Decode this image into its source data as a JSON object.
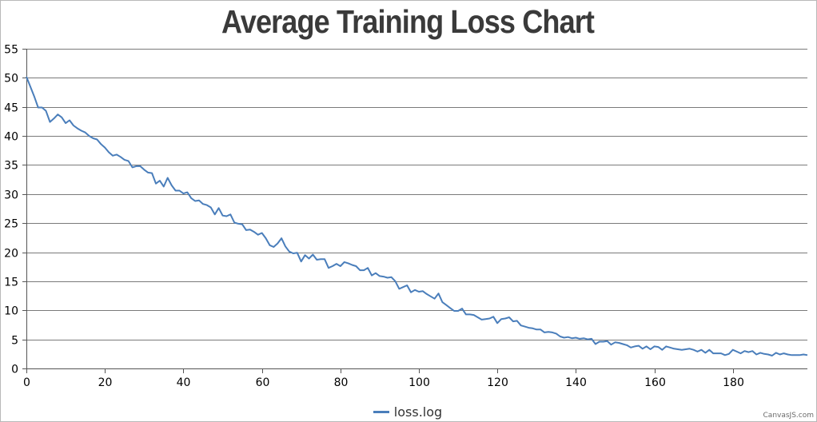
{
  "chart_data": {
    "type": "line",
    "title": "Average Training Loss Chart",
    "xlabel": "",
    "ylabel": "",
    "xlim": [
      0,
      199
    ],
    "ylim": [
      0,
      55
    ],
    "x_ticks": [
      0,
      20,
      40,
      60,
      80,
      100,
      120,
      140,
      160,
      180
    ],
    "y_ticks": [
      0,
      5,
      10,
      15,
      20,
      25,
      30,
      35,
      40,
      45,
      50,
      55
    ],
    "grid": "horizontal",
    "legend_position": "bottom-center",
    "line_color": "#4a7ebb",
    "series": [
      {
        "name": "loss.log",
        "x": [
          0,
          1,
          2,
          3,
          4,
          5,
          6,
          7,
          8,
          9,
          10,
          11,
          12,
          13,
          14,
          15,
          16,
          17,
          18,
          19,
          20,
          21,
          22,
          23,
          24,
          25,
          26,
          27,
          28,
          29,
          30,
          31,
          32,
          33,
          34,
          35,
          36,
          37,
          38,
          39,
          40,
          41,
          42,
          43,
          44,
          45,
          46,
          47,
          48,
          49,
          50,
          51,
          52,
          53,
          54,
          55,
          56,
          57,
          58,
          59,
          60,
          61,
          62,
          63,
          64,
          65,
          66,
          67,
          68,
          69,
          70,
          71,
          72,
          73,
          74,
          75,
          76,
          77,
          78,
          79,
          80,
          81,
          82,
          83,
          84,
          85,
          86,
          87,
          88,
          89,
          90,
          91,
          92,
          93,
          94,
          95,
          96,
          97,
          98,
          99,
          100,
          101,
          102,
          103,
          104,
          105,
          106,
          107,
          108,
          109,
          110,
          111,
          112,
          113,
          114,
          115,
          116,
          117,
          118,
          119,
          120,
          121,
          122,
          123,
          124,
          125,
          126,
          127,
          128,
          129,
          130,
          131,
          132,
          133,
          134,
          135,
          136,
          137,
          138,
          139,
          140,
          141,
          142,
          143,
          144,
          145,
          146,
          147,
          148,
          149,
          150,
          151,
          152,
          153,
          154,
          155,
          156,
          157,
          158,
          159,
          160,
          161,
          162,
          163,
          164,
          165,
          166,
          167,
          168,
          169,
          170,
          171,
          172,
          173,
          174,
          175,
          176,
          177,
          178,
          179,
          180,
          181,
          182,
          183,
          184,
          185,
          186,
          187,
          188,
          189,
          190,
          191,
          192,
          193,
          194,
          195,
          196,
          197,
          198,
          199
        ],
        "values": [
          50.2,
          48.5,
          46.8,
          44.9,
          44.9,
          44.3,
          42.4,
          43.0,
          43.7,
          43.2,
          42.2,
          42.7,
          41.8,
          41.3,
          40.9,
          40.6,
          40.0,
          39.6,
          39.4,
          38.6,
          38.0,
          37.2,
          36.6,
          36.8,
          36.4,
          35.9,
          35.7,
          34.6,
          34.8,
          34.8,
          34.2,
          33.7,
          33.6,
          31.8,
          32.3,
          31.3,
          32.8,
          31.5,
          30.6,
          30.6,
          30.1,
          30.3,
          29.3,
          28.8,
          28.9,
          28.3,
          28.1,
          27.7,
          26.5,
          27.6,
          26.3,
          26.2,
          26.5,
          25.1,
          24.9,
          24.8,
          23.8,
          23.9,
          23.5,
          23.0,
          23.3,
          22.4,
          21.2,
          20.9,
          21.5,
          22.4,
          21.0,
          20.1,
          19.8,
          19.9,
          18.4,
          19.5,
          18.9,
          19.6,
          18.7,
          18.8,
          18.8,
          17.3,
          17.6,
          18.0,
          17.6,
          18.3,
          18.1,
          17.8,
          17.6,
          16.9,
          16.9,
          17.3,
          16.0,
          16.4,
          15.9,
          15.8,
          15.6,
          15.7,
          15.0,
          13.7,
          14.0,
          14.3,
          13.1,
          13.5,
          13.2,
          13.3,
          12.8,
          12.4,
          12.0,
          12.9,
          11.4,
          10.9,
          10.4,
          9.9,
          9.9,
          10.3,
          9.3,
          9.3,
          9.2,
          8.8,
          8.4,
          8.5,
          8.6,
          8.9,
          7.8,
          8.5,
          8.6,
          8.8,
          8.1,
          8.2,
          7.4,
          7.2,
          7.0,
          6.9,
          6.7,
          6.7,
          6.2,
          6.3,
          6.2,
          6.0,
          5.5,
          5.3,
          5.4,
          5.2,
          5.3,
          5.1,
          5.2,
          5.0,
          5.1,
          4.2,
          4.6,
          4.6,
          4.7,
          4.1,
          4.5,
          4.4,
          4.2,
          4.0,
          3.6,
          3.8,
          3.9,
          3.4,
          3.8,
          3.3,
          3.8,
          3.7,
          3.2,
          3.8,
          3.6,
          3.4,
          3.3,
          3.2,
          3.3,
          3.4,
          3.2,
          2.9,
          3.2,
          2.7,
          3.2,
          2.6,
          2.6,
          2.6,
          2.3,
          2.5,
          3.2,
          2.9,
          2.6,
          3.0,
          2.8,
          3.0,
          2.4,
          2.7,
          2.5,
          2.4,
          2.2,
          2.7,
          2.4,
          2.6,
          2.4,
          2.3,
          2.3,
          2.3,
          2.4,
          2.3
        ]
      }
    ]
  },
  "legend": {
    "label": "loss.log",
    "color": "#4a7ebb"
  },
  "credit": "CanvasJS.com"
}
